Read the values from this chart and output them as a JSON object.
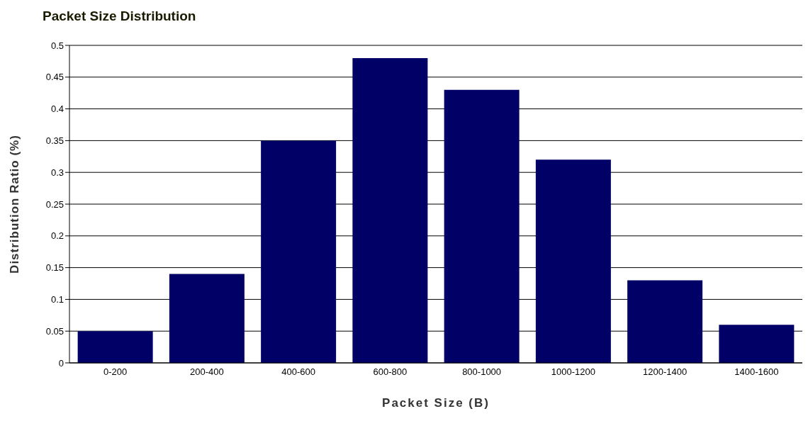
{
  "chart_data": {
    "type": "bar",
    "title": "Packet Size Distribution",
    "xlabel": "Packet Size (B)",
    "ylabel": "Distribution Ratio (%)",
    "categories": [
      "0-200",
      "200-400",
      "400-600",
      "600-800",
      "800-1000",
      "1000-1200",
      "1200-1400",
      "1400-1600"
    ],
    "values": [
      0.05,
      0.14,
      0.35,
      0.48,
      0.43,
      0.32,
      0.13,
      0.06
    ],
    "color": "#000066",
    "ylim": [
      0,
      0.5
    ],
    "yticks": [
      0,
      0.05,
      0.1,
      0.15,
      0.2,
      0.25,
      0.3,
      0.35,
      0.4,
      0.45,
      0.5
    ],
    "grid": "y"
  }
}
